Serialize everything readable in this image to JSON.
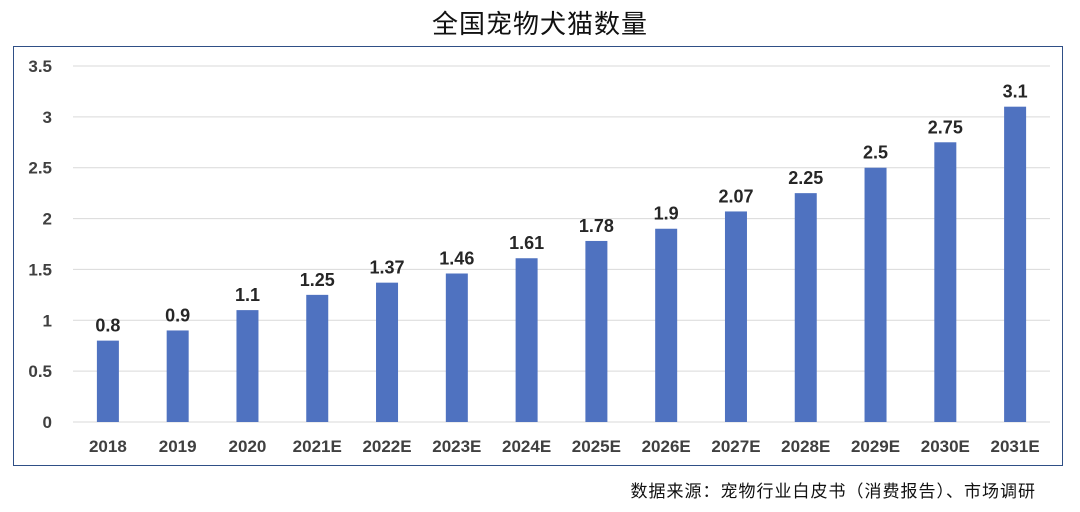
{
  "chart_data": {
    "type": "bar",
    "title": "全国宠物犬猫数量",
    "categories": [
      "2018",
      "2019",
      "2020",
      "2021E",
      "2022E",
      "2023E",
      "2024E",
      "2025E",
      "2026E",
      "2027E",
      "2028E",
      "2029E",
      "2030E",
      "2031E"
    ],
    "series": [
      {
        "values": [
          0.8,
          0.9,
          1.1,
          1.25,
          1.37,
          1.46,
          1.61,
          1.78,
          1.9,
          2.07,
          2.25,
          2.5,
          2.75,
          3.1
        ],
        "color": "#4f72c0"
      }
    ],
    "data_labels": [
      "0.8",
      "0.9",
      "1.1",
      "1.25",
      "1.37",
      "1.46",
      "1.61",
      "1.78",
      "1.9",
      "2.07",
      "2.25",
      "2.5",
      "2.75",
      "3.1"
    ],
    "yticks": [
      0,
      0.5,
      1,
      1.5,
      2,
      2.5,
      3,
      3.5
    ],
    "ytick_labels": [
      "0",
      "0.5",
      "1",
      "1.5",
      "2",
      "2.5",
      "3",
      "3.5"
    ],
    "ylim": [
      0,
      3.5
    ],
    "grid": true,
    "legend": "none"
  },
  "source_text": "数据来源：宠物行业白皮书（消费报告）、市场调研"
}
